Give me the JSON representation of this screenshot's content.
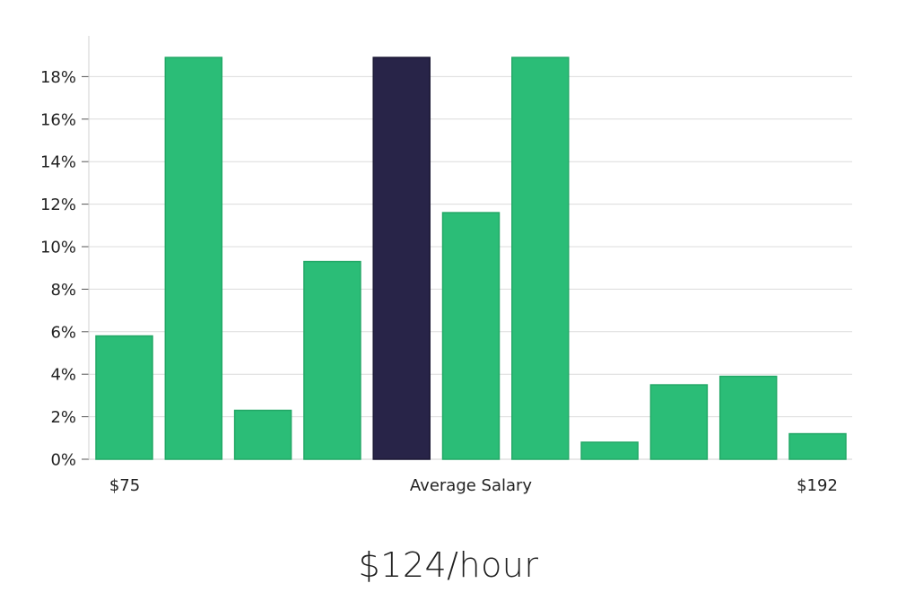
{
  "chart_data": {
    "type": "bar",
    "ytick_labels": [
      "0%",
      "2%",
      "4%",
      "6%",
      "8%",
      "10%",
      "12%",
      "14%",
      "16%",
      "18%"
    ],
    "values": [
      5.8,
      18.9,
      2.3,
      9.3,
      18.9,
      11.6,
      18.9,
      0.8,
      3.5,
      3.9,
      1.2
    ],
    "highlight_index": 4,
    "ylim": [
      0,
      19.8
    ],
    "grid": true,
    "x_labels": {
      "left": "$75",
      "center": "Average Salary",
      "right": "$192"
    },
    "colors": {
      "bar": "#2bbd77",
      "bar_edge": "#22a866",
      "highlight": "#282448",
      "highlight_edge": "#1a1733",
      "grid": "#dcdcdc",
      "axis": "#d0d0d0"
    }
  },
  "caption": "$124/hour"
}
